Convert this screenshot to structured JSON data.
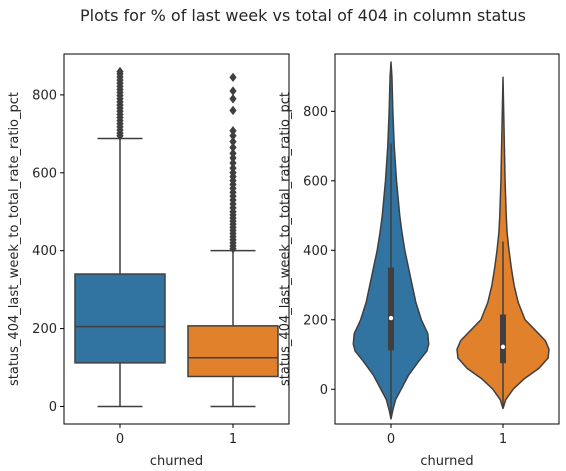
{
  "suptitle": "Plots for % of last week vs total of 404 in column status",
  "colors": {
    "series0": "#3274a1",
    "series1": "#e1812c",
    "line": "#3f3f3f"
  },
  "chart_data": [
    {
      "type": "box",
      "xlabel": "churned",
      "ylabel": "status_404_last_week_to_total_rate_ratio_pct",
      "categories": [
        "0",
        "1"
      ],
      "ylim": [
        -45,
        905
      ],
      "yticks": [
        0,
        200,
        400,
        600,
        800
      ],
      "boxes": [
        {
          "category": "0",
          "whisker_low": 0,
          "q1": 112,
          "median": 205,
          "q3": 340,
          "whisker_high": 688,
          "outliers": [
            695,
            702,
            710,
            718,
            726,
            734,
            742,
            750,
            758,
            766,
            774,
            782,
            790,
            798,
            806,
            814,
            822,
            830,
            838,
            846,
            854,
            860
          ]
        },
        {
          "category": "1",
          "whisker_low": 0,
          "q1": 77,
          "median": 125,
          "q3": 207,
          "whisker_high": 400,
          "outliers": [
            405,
            412,
            420,
            428,
            436,
            444,
            452,
            460,
            468,
            476,
            484,
            492,
            500,
            510,
            520,
            530,
            540,
            550,
            560,
            570,
            580,
            590,
            600,
            612,
            625,
            638,
            650,
            665,
            680,
            695,
            708,
            760,
            790,
            810,
            845
          ]
        }
      ]
    },
    {
      "type": "violin",
      "xlabel": "churned",
      "ylabel": "status_404_last_week_to_total_rate_ratio_pct",
      "categories": [
        "0",
        "1"
      ],
      "ylim": [
        -100,
        965
      ],
      "yticks": [
        0,
        200,
        400,
        600,
        800
      ],
      "violins": [
        {
          "category": "0",
          "min": -85,
          "max": 942,
          "q1": 112,
          "median": 205,
          "q3": 350,
          "profile": [
            [
              -85,
              0.0
            ],
            [
              -60,
              0.04
            ],
            [
              -30,
              0.1
            ],
            [
              0,
              0.22
            ],
            [
              40,
              0.38
            ],
            [
              80,
              0.6
            ],
            [
              110,
              0.78
            ],
            [
              130,
              0.82
            ],
            [
              160,
              0.8
            ],
            [
              200,
              0.66
            ],
            [
              250,
              0.54
            ],
            [
              300,
              0.46
            ],
            [
              350,
              0.38
            ],
            [
              400,
              0.3
            ],
            [
              450,
              0.24
            ],
            [
              500,
              0.19
            ],
            [
              600,
              0.12
            ],
            [
              700,
              0.07
            ],
            [
              800,
              0.04
            ],
            [
              900,
              0.02
            ],
            [
              942,
              0.0
            ]
          ]
        },
        {
          "category": "1",
          "min": -55,
          "max": 898,
          "q1": 75,
          "median": 122,
          "q3": 215,
          "profile": [
            [
              -55,
              0.0
            ],
            [
              -30,
              0.06
            ],
            [
              0,
              0.22
            ],
            [
              30,
              0.46
            ],
            [
              60,
              0.78
            ],
            [
              90,
              0.98
            ],
            [
              115,
              1.0
            ],
            [
              140,
              0.92
            ],
            [
              170,
              0.7
            ],
            [
              200,
              0.48
            ],
            [
              250,
              0.33
            ],
            [
              300,
              0.24
            ],
            [
              350,
              0.18
            ],
            [
              400,
              0.13
            ],
            [
              450,
              0.09
            ],
            [
              500,
              0.07
            ],
            [
              600,
              0.045
            ],
            [
              700,
              0.03
            ],
            [
              800,
              0.015
            ],
            [
              898,
              0.0
            ]
          ]
        }
      ]
    }
  ]
}
